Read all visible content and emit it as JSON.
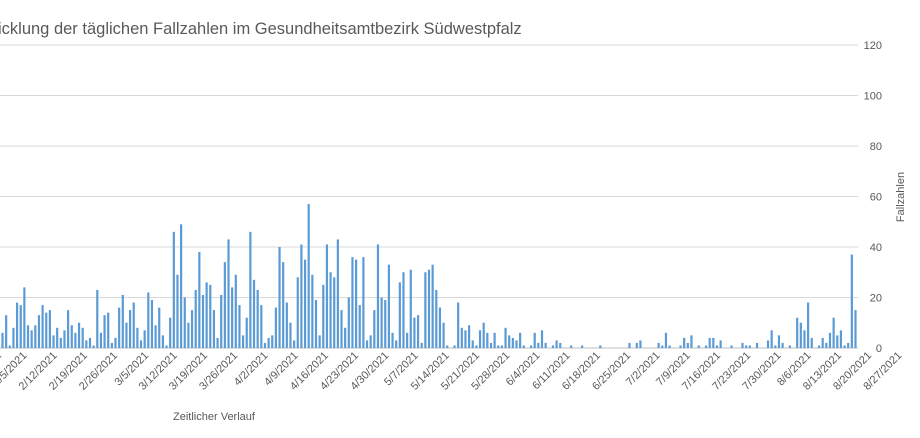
{
  "chart_data": {
    "type": "bar",
    "title": "icklung der täglichen Fallzahlen im Gesundheitsamtbezirk Südwestpfalz",
    "xlabel": "Zeitlicher Verlauf",
    "ylabel": "Fallzahlen",
    "ylim": [
      0,
      120
    ],
    "yticks": [
      "0",
      "20",
      "40",
      "60",
      "80",
      "100",
      "120"
    ],
    "y_axis_position": "right",
    "grid": true,
    "bar_color": "#5b9bd5",
    "xtick_labels": [
      "2021",
      "2/5/2021",
      "2/12/2021",
      "2/19/2021",
      "2/26/2021",
      "3/5/2021",
      "3/12/2021",
      "3/19/2021",
      "3/26/2021",
      "4/2/2021",
      "4/9/2021",
      "4/16/2021",
      "4/23/2021",
      "4/30/2021",
      "5/7/2021",
      "5/14/2021",
      "5/21/2021",
      "5/28/2021",
      "6/4/2021",
      "6/11/2021",
      "6/18/2021",
      "6/25/2021",
      "7/2/2021",
      "7/9/2021",
      "7/16/2021",
      "7/23/2021",
      "7/30/2021",
      "8/6/2021",
      "8/13/2021",
      "8/20/2021",
      "8/27/2021"
    ],
    "values": [
      6,
      13,
      1,
      8,
      18,
      17,
      24,
      9,
      7,
      9,
      13,
      17,
      14,
      15,
      5,
      8,
      4,
      7,
      15,
      9,
      6,
      10,
      8,
      3,
      4,
      1,
      23,
      6,
      13,
      14,
      2,
      4,
      16,
      21,
      10,
      15,
      18,
      8,
      3,
      7,
      22,
      19,
      9,
      16,
      5,
      1,
      12,
      46,
      29,
      49,
      20,
      10,
      15,
      23,
      38,
      21,
      26,
      25,
      15,
      4,
      21,
      34,
      43,
      24,
      29,
      17,
      5,
      12,
      46,
      27,
      23,
      17,
      2,
      4,
      5,
      16,
      40,
      34,
      18,
      10,
      3,
      28,
      41,
      35,
      57,
      29,
      19,
      5,
      25,
      41,
      30,
      28,
      43,
      15,
      8,
      20,
      36,
      35,
      17,
      36,
      3,
      5,
      15,
      41,
      20,
      19,
      33,
      6,
      3,
      26,
      30,
      6,
      31,
      12,
      13,
      2,
      30,
      31,
      33,
      23,
      16,
      10,
      1,
      0,
      1,
      18,
      8,
      7,
      9,
      3,
      1,
      7,
      10,
      6,
      2,
      6,
      1,
      1,
      8,
      5,
      4,
      3,
      6,
      1,
      0,
      1,
      6,
      2,
      7,
      2,
      0,
      1,
      3,
      2,
      0,
      0,
      1,
      0,
      0,
      1,
      0,
      0,
      0,
      0,
      1,
      0,
      0,
      0,
      0,
      0,
      0,
      0,
      2,
      0,
      2,
      3,
      0,
      0,
      0,
      0,
      2,
      1,
      6,
      1,
      0,
      0,
      1,
      4,
      2,
      5,
      0,
      1,
      0,
      1,
      4,
      4,
      1,
      3,
      0,
      0,
      1,
      0,
      0,
      2,
      1,
      1,
      0,
      2,
      0,
      0,
      3,
      7,
      1,
      5,
      2,
      0,
      1,
      0,
      12,
      10,
      7,
      18,
      4,
      0,
      1,
      4,
      2,
      6,
      12,
      5,
      7,
      1,
      2,
      37,
      15
    ]
  }
}
